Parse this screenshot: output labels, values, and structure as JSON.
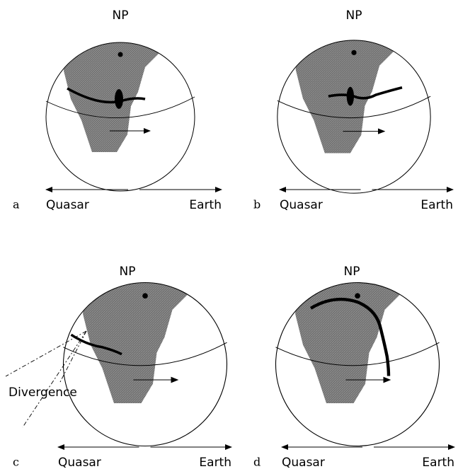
{
  "panels": [
    {
      "letter": "a",
      "pole": "NP",
      "left": "Quasar",
      "right": "Earth"
    },
    {
      "letter": "b",
      "pole": "NP",
      "left": "Quasar",
      "right": "Earth"
    },
    {
      "letter": "c",
      "pole": "NP",
      "left": "Quasar",
      "right": "Earth"
    },
    {
      "letter": "d",
      "pole": "NP",
      "left": "Quasar",
      "right": "Earth"
    }
  ],
  "annotation": "Divergence"
}
